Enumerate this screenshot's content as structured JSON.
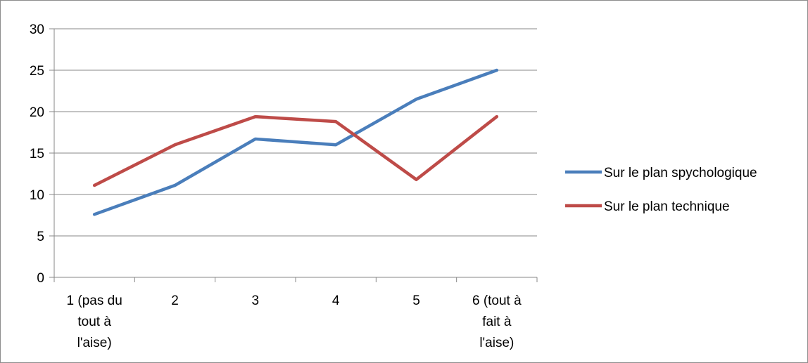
{
  "chart_data": {
    "type": "line",
    "categories": [
      [
        "1 (pas du",
        "tout à",
        "l'aise)"
      ],
      [
        "2"
      ],
      [
        "3"
      ],
      [
        "4"
      ],
      [
        "5"
      ],
      [
        "6 (tout à",
        "fait à",
        "l'aise)"
      ]
    ],
    "series": [
      {
        "name": "Sur le plan spychologique",
        "color": "#4a7ebb",
        "values": [
          7.6,
          11.1,
          16.7,
          16.0,
          21.5,
          25.0
        ]
      },
      {
        "name": "Sur le plan technique",
        "color": "#be4b48",
        "values": [
          11.1,
          16.0,
          19.4,
          18.8,
          11.8,
          19.4
        ]
      }
    ],
    "ylim": [
      0,
      30
    ],
    "yticks": [
      0,
      5,
      10,
      15,
      20,
      25,
      30
    ],
    "grid": true,
    "legend_position": "right",
    "title": "",
    "xlabel": "",
    "ylabel": ""
  }
}
